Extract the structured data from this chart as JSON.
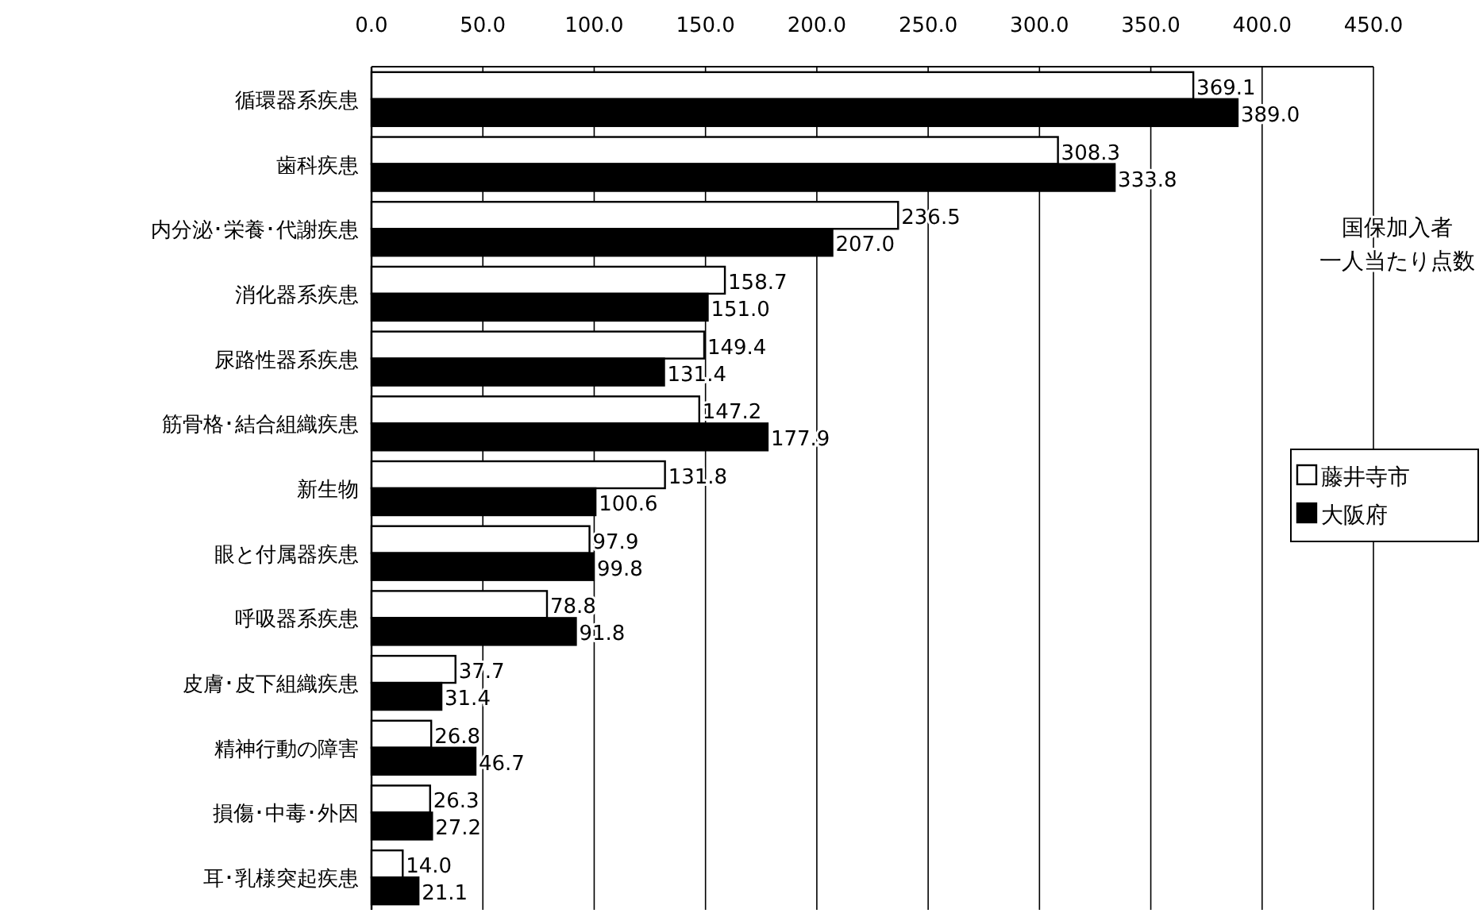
{
  "chart_data": {
    "type": "bar",
    "orientation": "horizontal",
    "categories": [
      "循環器系疾患",
      "歯科疾患",
      "内分泌･栄養･代謝疾患",
      "消化器系疾患",
      "尿路性器系疾患",
      "筋骨格･結合組織疾患",
      "新生物",
      "眼と付属器疾患",
      "呼吸器系疾患",
      "皮膚･皮下組織疾患",
      "精神行動の障害",
      "損傷･中毒･外因",
      "耳･乳様突起疾患"
    ],
    "series": [
      {
        "name": "藤井寺市",
        "color": "#ffffff",
        "values": [
          369.1,
          308.3,
          236.5,
          158.7,
          149.4,
          147.2,
          131.8,
          97.9,
          78.8,
          37.7,
          26.8,
          26.3,
          14.0
        ],
        "value_labels": [
          "369.1",
          "308.3",
          "236.5",
          "158.7",
          "149.4",
          "147.2",
          "131.8",
          "97.9",
          "78.8",
          "37.7",
          "26.8",
          "26.3",
          "14.0"
        ]
      },
      {
        "name": "大阪府",
        "color": "#000000",
        "values": [
          389.0,
          333.8,
          207.0,
          151.0,
          131.4,
          177.9,
          100.6,
          99.8,
          91.8,
          31.4,
          46.7,
          27.2,
          21.1
        ],
        "value_labels": [
          "389.0",
          "333.8",
          "207.0",
          "151.0",
          "131.4",
          "177.9",
          "100.6",
          "99.8",
          "91.8",
          "31.4",
          "46.7",
          "27.2",
          "21.1"
        ]
      }
    ],
    "xlim": [
      0,
      450
    ],
    "xticks": [
      {
        "value": 0,
        "label": "0.0"
      },
      {
        "value": 50,
        "label": "50.0"
      },
      {
        "value": 100,
        "label": "100.0"
      },
      {
        "value": 150,
        "label": "150.0"
      },
      {
        "value": 200,
        "label": "200.0"
      },
      {
        "value": 250,
        "label": "250.0"
      },
      {
        "value": 300,
        "label": "300.0"
      },
      {
        "value": 350,
        "label": "350.0"
      },
      {
        "value": 400,
        "label": "400.0"
      },
      {
        "value": 450,
        "label": "450.0"
      }
    ],
    "grid": "x",
    "legend": "right",
    "annotations": [
      "国保加入者",
      "一人当たり点数"
    ]
  }
}
